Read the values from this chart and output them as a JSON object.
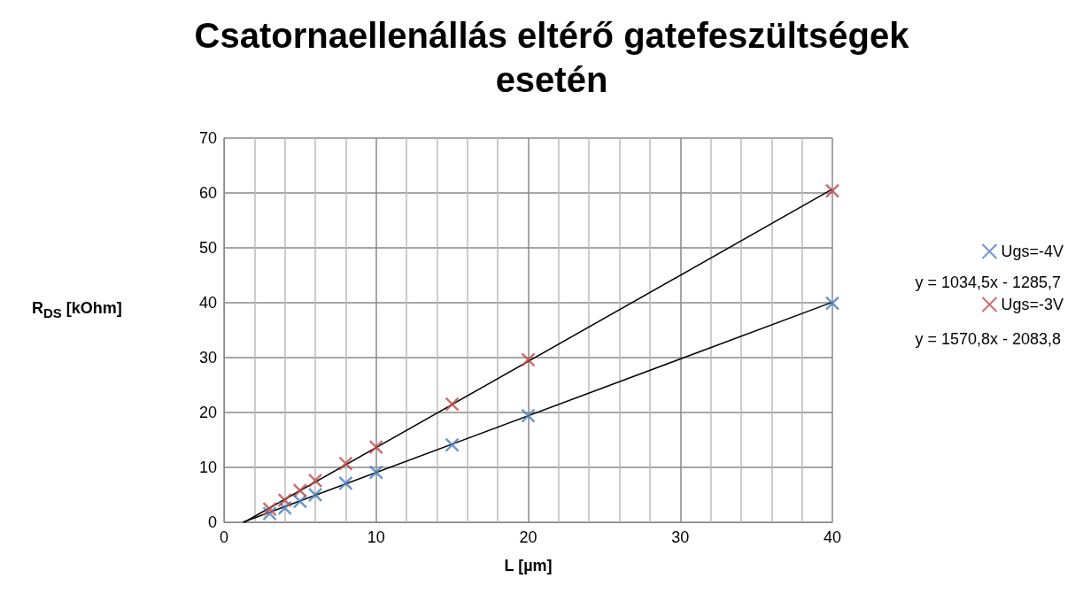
{
  "chart_data": {
    "type": "scatter",
    "title": "Csatornaellenállás eltérő gatefeszültségek\nesetén",
    "xlabel": "L [µm]",
    "ylabel": "R$_{DS}$ [kOhm]",
    "xlim": [
      0,
      40
    ],
    "xticks": [
      0,
      10,
      20,
      30,
      40
    ],
    "ylim": [
      0,
      70
    ],
    "yticks": [
      0,
      10,
      20,
      30,
      40,
      50,
      60,
      70
    ],
    "grid": true,
    "legend": "right",
    "marker": "cross",
    "series": [
      {
        "name": "Ugs=-4V",
        "color": "#4a7ebb",
        "x": [
          3,
          4,
          5,
          6,
          8,
          10,
          15,
          20,
          40
        ],
        "values": [
          1.6,
          2.6,
          3.8,
          5.0,
          7.1,
          9.1,
          14.1,
          19.4,
          39.9
        ]
      },
      {
        "type": "line",
        "color": "#000000",
        "marker": "none",
        "x": [
          1.24,
          40
        ],
        "values": [
          0,
          40.1
        ]
      },
      {
        "name": "Ugs=-3V",
        "color": "#be4b48",
        "x": [
          3,
          4,
          5,
          6,
          8,
          10,
          15,
          20,
          40
        ],
        "values": [
          2.4,
          4.0,
          5.8,
          7.6,
          10.7,
          13.7,
          21.5,
          29.6,
          60.4
        ]
      },
      {
        "type": "line",
        "color": "#000000",
        "marker": "none",
        "x": [
          1.33,
          40
        ],
        "values": [
          0,
          60.7
        ]
      }
    ],
    "annotations": [
      "y = 1034,5x - 1285,7",
      "y = 1570,8x - 2083,8"
    ]
  }
}
